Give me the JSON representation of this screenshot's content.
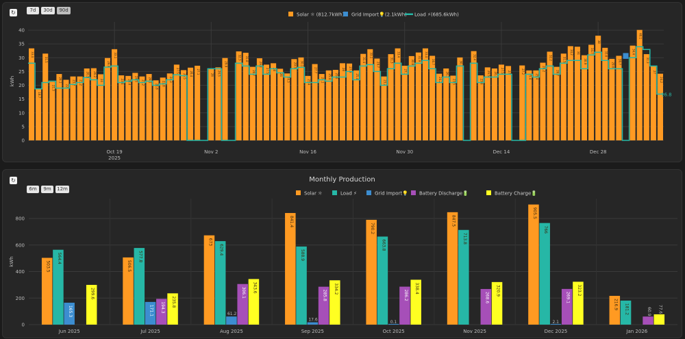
{
  "daily": {
    "range_buttons": [
      "7d",
      "30d",
      "90d"
    ],
    "active_range": "90d",
    "legend": [
      {
        "label": "Solar ☼ (812.7kWh)",
        "color": "#ff9a22",
        "kind": "box"
      },
      {
        "label": "Grid Import💡(2.1kWh)",
        "color": "#3c8dd0",
        "kind": "box"
      },
      {
        "label": "Load ⚡(685.6kWh)",
        "color": "#26b7a6",
        "kind": "line"
      }
    ],
    "last_load_label": "16.8"
  },
  "monthly": {
    "title": "Monthly Production",
    "range_buttons": [
      "6m",
      "9m",
      "12m"
    ],
    "legend": [
      {
        "label": "Solar ☼",
        "color": "#ff9a22"
      },
      {
        "label": "Load ⚡",
        "color": "#26b7a6"
      },
      {
        "label": "Grid Import💡",
        "color": "#3c8dd0"
      },
      {
        "label": "Battery Discharge🔋",
        "color": "#a64fb8"
      },
      {
        "label": "Battery Charge🔋",
        "color": "#ffff22"
      }
    ]
  },
  "chart_data": [
    {
      "type": "bar",
      "ylabel": "kWh",
      "ylim": [
        0,
        43
      ],
      "yticks": [
        0,
        5,
        10,
        15,
        20,
        25,
        30,
        35,
        40
      ],
      "xtick_labels": [
        "Oct 19",
        "Nov 2",
        "Nov 16",
        "Nov 30",
        "Dec 14",
        "Dec 28"
      ],
      "xtick_day_index": [
        12,
        26,
        40,
        54,
        68,
        82
      ],
      "xtick_sublabel": "2025",
      "grid": true,
      "legend_position": "top-center",
      "series": [
        {
          "name": "Solar ☼",
          "type": "bar",
          "values": [
            33.4,
            18.7,
            31.5,
            21.3,
            24.1,
            22.0,
            23.2,
            23.2,
            26.1,
            26.2,
            24.0,
            29.9,
            33.1,
            23.6,
            23.4,
            24.5,
            23.2,
            24.1,
            21.8,
            22.8,
            24.3,
            27.5,
            25.5,
            26.4,
            27.1,
            0,
            26.0,
            26.5,
            29.9,
            0,
            32.3,
            31.8,
            26.7,
            29.8,
            27.5,
            28.0,
            26.0,
            24.3,
            29.5,
            30.1,
            23.4,
            27.7,
            24.1,
            25.4,
            25.6,
            28.0,
            27.9,
            25.4,
            31.4,
            33.1,
            29.7,
            23.2,
            31.3,
            33.4,
            27.1,
            30.6,
            31.9,
            33.4,
            30.7,
            24.2,
            26.1,
            23.5,
            30.1,
            0,
            32.4,
            23.6,
            26.5,
            26.1,
            27.5,
            27.0,
            0,
            27.2,
            25.4,
            25.4,
            28.2,
            32.2,
            26.7,
            31.5,
            34.2,
            34.0,
            30.9,
            34.7,
            38.0,
            33.6,
            29.6,
            30.7,
            0,
            34.4,
            40.1,
            31.3,
            27.0,
            24.2
          ]
        },
        {
          "name": "Grid Import💡",
          "type": "bar",
          "values": [
            0,
            0,
            0,
            0,
            0,
            0,
            0,
            0,
            0,
            0,
            0,
            0,
            0,
            0,
            0,
            0,
            0,
            0,
            0,
            0,
            0,
            0,
            0,
            0,
            0,
            0,
            0,
            0,
            0,
            0,
            0,
            0,
            0,
            0,
            0,
            0,
            0,
            0,
            0,
            0,
            0,
            0,
            0,
            0,
            0,
            0,
            0,
            0,
            0,
            0,
            0,
            0,
            0,
            0,
            0,
            0,
            0,
            0,
            0,
            0,
            0,
            0,
            0,
            0,
            0,
            0,
            0,
            0,
            0,
            0,
            0,
            0,
            0,
            0,
            0,
            0,
            0,
            0,
            0,
            0,
            0,
            0,
            0,
            0,
            0,
            0,
            2.1,
            0,
            0,
            0,
            0,
            0
          ]
        },
        {
          "name": "Load ⚡",
          "type": "line",
          "values": [
            28.0,
            18.7,
            21.0,
            21.5,
            19.0,
            19.0,
            20.3,
            21.0,
            22.8,
            22.0,
            20.0,
            26.6,
            27.0,
            21.0,
            21.5,
            22.0,
            21.0,
            21.5,
            20.0,
            20.5,
            22.0,
            23.8,
            23.5,
            0,
            0,
            0,
            26.0,
            26.0,
            0,
            0,
            28.0,
            27.0,
            24.0,
            27.0,
            24.0,
            26.0,
            24.5,
            23.0,
            26.0,
            26.5,
            21.0,
            21.0,
            22.0,
            21.5,
            23.0,
            23.0,
            25.0,
            22.0,
            27.0,
            27.5,
            25.0,
            20.0,
            26.0,
            28.0,
            24.0,
            27.0,
            28.0,
            29.0,
            26.0,
            21.0,
            23.0,
            21.0,
            27.0,
            0,
            28.0,
            21.0,
            23.0,
            23.0,
            24.0,
            24.0,
            0,
            0,
            24.0,
            23.0,
            26.0,
            27.0,
            24.0,
            28.0,
            29.0,
            29.0,
            26.0,
            31.0,
            32.0,
            29.0,
            26.0,
            26.0,
            0,
            30.0,
            34.0,
            33.0,
            27.0,
            16.8
          ]
        }
      ]
    },
    {
      "type": "bar",
      "title": "Monthly Production",
      "ylabel": "kWh",
      "ylim": [
        0,
        950
      ],
      "yticks": [
        0,
        200,
        400,
        600,
        800
      ],
      "categories": [
        "Jun 2025",
        "Jul 2025",
        "Aug 2025",
        "Sep 2025",
        "Oct 2025",
        "Nov 2025",
        "Dec 2025",
        "Jan 2026"
      ],
      "grid": true,
      "legend_position": "top-center",
      "series": [
        {
          "name": "Solar ☼",
          "values": [
            503.5,
            506.5,
            673,
            841.4,
            790.2,
            847.5,
            905.5,
            216.9
          ],
          "labels": [
            "503.5",
            "506.5",
            "673",
            "841.4",
            "790.2",
            "847.5",
            "905.5",
            "216.9"
          ]
        },
        {
          "name": "Load ⚡",
          "values": [
            564.4,
            577.8,
            629.4,
            588.9,
            663.8,
            713.8,
            766,
            181.2
          ],
          "labels": [
            "564.4",
            "577.8",
            "629.4",
            "588.9",
            "663.8",
            "713.8",
            "766",
            "181.2"
          ]
        },
        {
          "name": "Grid Import💡",
          "values": [
            165.3,
            171.1,
            61.2,
            17.6,
            0.1,
            0,
            2.1,
            0
          ],
          "labels": [
            "165.3",
            "171.1",
            "61.2",
            "17.6",
            "0.1",
            "",
            "2.1",
            ""
          ]
        },
        {
          "name": "Battery Discharge🔋",
          "values": [
            0,
            194.3,
            306.1,
            285.8,
            286.2,
            268.6,
            269.1,
            60.9
          ],
          "labels": [
            "",
            "194.3",
            "306.1",
            "285.8",
            "286.2",
            "268.6",
            "269.1",
            "60.9"
          ]
        },
        {
          "name": "Battery Charge🔋",
          "values": [
            299.6,
            235.8,
            343.6,
            334.2,
            338.4,
            320.9,
            323.2,
            77.6
          ],
          "labels": [
            "299.6",
            "235.8",
            "343.6",
            "334.2",
            "338.4",
            "320.9",
            "323.2",
            "77.6"
          ]
        }
      ]
    }
  ]
}
